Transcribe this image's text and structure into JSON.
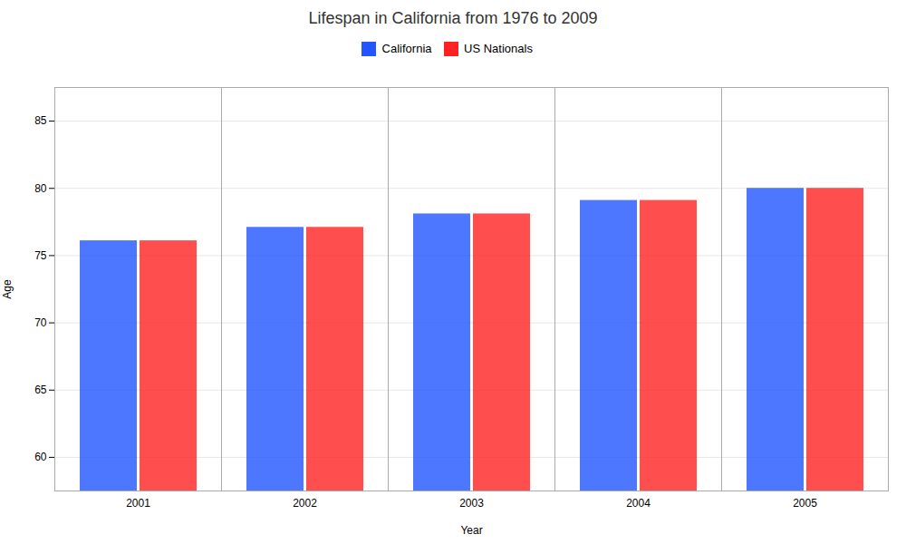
{
  "chart_data": {
    "type": "bar",
    "title": "Lifespan in California from 1976 to 2009",
    "xlabel": "Year",
    "ylabel": "Age",
    "categories": [
      "2001",
      "2002",
      "2003",
      "2004",
      "2005"
    ],
    "series": [
      {
        "name": "California",
        "color": "#2255ff",
        "values": [
          76.1,
          77.1,
          78.1,
          79.1,
          80.0
        ]
      },
      {
        "name": "US Nationals",
        "color": "#ff2222",
        "values": [
          76.1,
          77.1,
          78.1,
          79.1,
          80.0
        ]
      }
    ],
    "ylim": [
      57.5,
      87.5
    ],
    "yticks": [
      60,
      65,
      70,
      75,
      80,
      85
    ],
    "grid": true,
    "legend": "top"
  }
}
